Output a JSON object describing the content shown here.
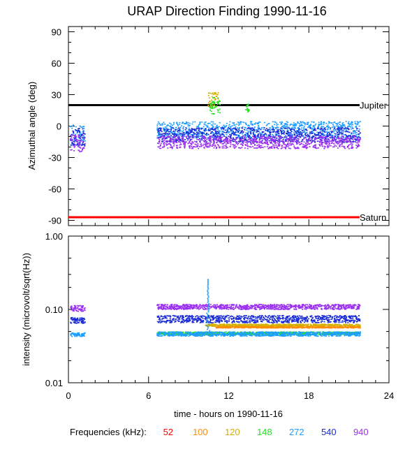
{
  "title": "URAP Direction Finding  1990-11-16",
  "chart_data": [
    {
      "type": "scatter",
      "name": "azimuth",
      "ylabel": "Azimuthal angle (deg)",
      "xlim": [
        0,
        24
      ],
      "ylim": [
        -95,
        95
      ],
      "yticks": [
        "90",
        "60",
        "30",
        "0",
        "-30",
        "-60",
        "-90"
      ],
      "reference_lines": [
        {
          "label": "Jupiter",
          "value": 20,
          "color": "#000000"
        },
        {
          "label": "Saturn",
          "value": -87,
          "color": "#ff0000"
        }
      ],
      "series": [
        {
          "freq": "272",
          "color": "#1e9eff",
          "segments": [
            {
              "x0": 0.1,
              "x1": 1.2,
              "y": -8,
              "spread": 10
            },
            {
              "x0": 6.6,
              "x1": 21.8,
              "y": -3,
              "spread": 8
            }
          ]
        },
        {
          "freq": "540",
          "color": "#1a2bd6",
          "segments": [
            {
              "x0": 0.1,
              "x1": 1.2,
              "y": -10,
              "spread": 9
            },
            {
              "x0": 6.6,
              "x1": 21.8,
              "y": -8,
              "spread": 7
            }
          ]
        },
        {
          "freq": "940",
          "color": "#9b30f0",
          "segments": [
            {
              "x0": 0.1,
              "x1": 1.2,
              "y": -16,
              "spread": 8
            },
            {
              "x0": 6.6,
              "x1": 21.8,
              "y": -15,
              "spread": 6
            }
          ]
        },
        {
          "freq": "120",
          "color": "#d6b000",
          "segments": [
            {
              "x0": 10.4,
              "x1": 11.2,
              "y": 25,
              "spread": 8
            }
          ]
        },
        {
          "freq": "148",
          "color": "#22e022",
          "segments": [
            {
              "x0": 10.5,
              "x1": 11.3,
              "y": 20,
              "spread": 8
            },
            {
              "x0": 13.2,
              "x1": 13.5,
              "y": 18,
              "spread": 4
            }
          ]
        }
      ]
    },
    {
      "type": "scatter",
      "name": "intensity",
      "ylabel": "intensity (microvolt/sqrt(Hz))",
      "yscale": "log",
      "xlim": [
        0,
        24
      ],
      "ylim": [
        0.01,
        1.0
      ],
      "yticks": [
        "1.00",
        "0.10",
        "0.01"
      ],
      "xticks": [
        "0",
        "6",
        "12",
        "18",
        "24"
      ],
      "xlabel": "time - hours on 1990-11-16",
      "series": [
        {
          "freq": "940",
          "color": "#9b30f0",
          "segments": [
            {
              "x0": 0.1,
              "x1": 1.2,
              "y": 0.105,
              "spread": 0.08
            },
            {
              "x0": 6.6,
              "x1": 21.8,
              "y": 0.11,
              "spread": 0.07
            }
          ]
        },
        {
          "freq": "540",
          "color": "#1a2bd6",
          "segments": [
            {
              "x0": 0.1,
              "x1": 1.2,
              "y": 0.072,
              "spread": 0.08
            },
            {
              "x0": 6.6,
              "x1": 21.8,
              "y": 0.075,
              "spread": 0.1
            }
          ]
        },
        {
          "freq": "120",
          "color": "#d6b000",
          "segments": [
            {
              "x0": 10.2,
              "x1": 21.8,
              "y": 0.062,
              "spread": 0.03
            }
          ]
        },
        {
          "freq": "100",
          "color": "#ff8c00",
          "segments": [
            {
              "x0": 11.0,
              "x1": 21.8,
              "y": 0.058,
              "spread": 0.02
            }
          ]
        },
        {
          "freq": "148",
          "color": "#22e022",
          "segments": [
            {
              "x0": 6.6,
              "x1": 21.8,
              "y": 0.048,
              "spread": 0.04
            }
          ]
        },
        {
          "freq": "272",
          "color": "#1e9eff",
          "segments": [
            {
              "x0": 0.1,
              "x1": 1.2,
              "y": 0.046,
              "spread": 0.05
            },
            {
              "x0": 6.6,
              "x1": 21.8,
              "y": 0.047,
              "spread": 0.06
            }
          ]
        }
      ],
      "peak": {
        "x": 10.4,
        "y": 0.26,
        "freq": "272"
      }
    }
  ],
  "legend": {
    "title": "Frequencies (kHz):",
    "items": [
      {
        "label": "52",
        "color": "#ff0000"
      },
      {
        "label": "100",
        "color": "#ff8c00"
      },
      {
        "label": "120",
        "color": "#d6b000"
      },
      {
        "label": "148",
        "color": "#22e022"
      },
      {
        "label": "272",
        "color": "#1e9eff"
      },
      {
        "label": "540",
        "color": "#1a2bd6"
      },
      {
        "label": "940",
        "color": "#9b30f0"
      }
    ]
  }
}
